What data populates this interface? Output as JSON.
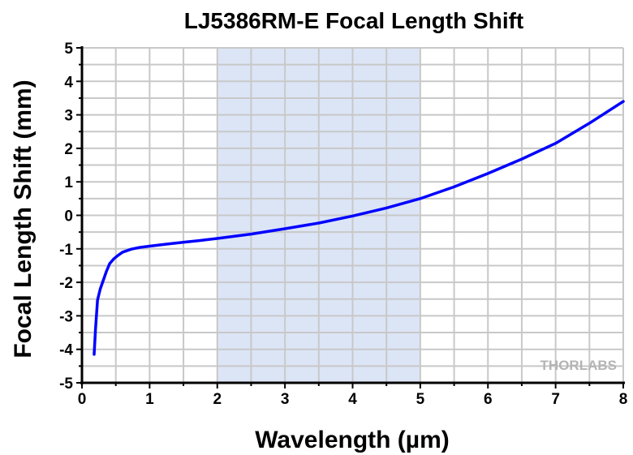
{
  "chart_data": {
    "type": "line",
    "title": "LJ5386RM-E Focal Length Shift",
    "xlabel": "Wavelength (µm)",
    "ylabel": "Focal Length Shift (mm)",
    "xlim": [
      0,
      8
    ],
    "ylim": [
      -5,
      5
    ],
    "xticks": [
      "0",
      "1",
      "2",
      "3",
      "4",
      "5",
      "6",
      "7",
      "8"
    ],
    "yticks": [
      "-5",
      "-4",
      "-3",
      "-2",
      "-1",
      "0",
      "1",
      "2",
      "3",
      "4",
      "5"
    ],
    "grid": true,
    "shaded_region": [
      2,
      5
    ],
    "series": [
      {
        "name": "Focal Length Shift",
        "color": "#0000ff",
        "x": [
          0.18,
          0.2,
          0.23,
          0.27,
          0.31,
          0.36,
          0.41,
          0.47,
          0.53,
          0.6,
          0.73,
          0.85,
          1.0,
          1.25,
          1.52,
          1.75,
          2.0,
          2.5,
          3.0,
          3.5,
          4.0,
          4.5,
          5.0,
          5.5,
          6.0,
          6.5,
          7.0,
          7.5,
          8.0
        ],
        "y": [
          -4.15,
          -3.4,
          -2.53,
          -2.2,
          -1.97,
          -1.68,
          -1.44,
          -1.3,
          -1.2,
          -1.1,
          -1.01,
          -0.96,
          -0.92,
          -0.86,
          -0.8,
          -0.75,
          -0.69,
          -0.56,
          -0.4,
          -0.23,
          -0.02,
          0.22,
          0.5,
          0.85,
          1.25,
          1.68,
          2.15,
          2.75,
          3.4
        ]
      }
    ],
    "watermark": "THORLABS"
  },
  "colors": {
    "shade": "#dce5f6",
    "grid": "#c8c8c8",
    "line": "#0000ff"
  }
}
